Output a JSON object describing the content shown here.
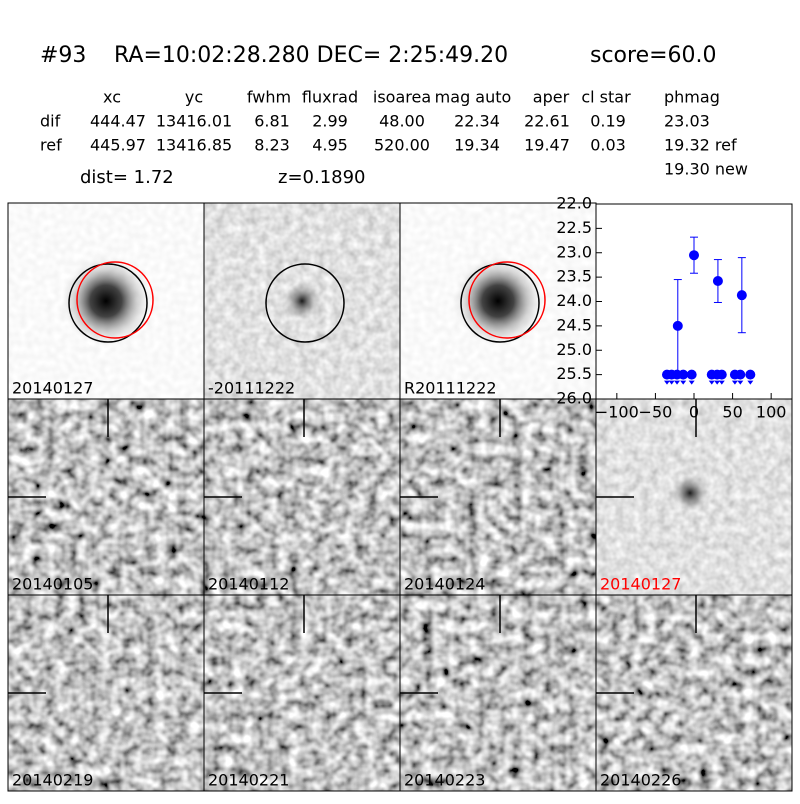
{
  "header": {
    "id": "#93",
    "coords": "RA=10:02:28.280 DEC= 2:25:49.20",
    "score": "score=60.0"
  },
  "table": {
    "columns": [
      "xc",
      "yc",
      "fwhm",
      "fluxrad",
      "isoarea",
      "mag auto",
      "aper",
      "cl star",
      "phmag"
    ],
    "rows": [
      [
        "dif",
        "444.47",
        "13416.01",
        "6.81",
        "2.99",
        "48.00",
        "22.34",
        "22.61",
        "0.19",
        "23.03"
      ],
      [
        "ref",
        "445.97",
        "13416.85",
        "8.23",
        "4.95",
        "520.00",
        "19.34",
        "19.47",
        "0.03",
        "19.32 ref"
      ]
    ],
    "extra": "19.30 new"
  },
  "dist": "dist=  1.72",
  "z": "z=0.1890",
  "panels": [
    "20140127",
    "-20111222",
    "R20111222",
    "20140105",
    "20140112",
    "20140124",
    "20140127",
    "20140219",
    "20140221",
    "20140223",
    "20140226"
  ],
  "chart_data": {
    "type": "scatter",
    "xlim": [
      -127,
      127
    ],
    "ylim": [
      26,
      22
    ],
    "xticks": [
      {
        "value": -100,
        "label": "−100"
      },
      {
        "value": -50,
        "label": "−50"
      },
      0,
      50,
      100
    ],
    "yticks": [
      {
        "value": 22,
        "label": "22.0"
      },
      {
        "value": 22.5,
        "label": "22.5"
      },
      {
        "value": 23,
        "label": "23.0"
      },
      {
        "value": 23.5,
        "label": "23.5"
      },
      {
        "value": 24,
        "label": "24.0"
      },
      {
        "value": 24.5,
        "label": "24.5"
      },
      {
        "value": 25,
        "label": "25.0"
      },
      {
        "value": 25.5,
        "label": "25.5"
      },
      {
        "value": 26,
        "label": "26.0"
      }
    ],
    "series": [
      {
        "color": "#0000ff",
        "x": [
          -21,
          0,
          31,
          62
        ],
        "values": [
          24.5,
          23.05,
          23.58,
          23.87
        ],
        "errors": [
          0.95,
          0.37,
          0.44,
          0.77
        ]
      },
      {
        "color": "#0000ff",
        "x": [
          -35,
          -29,
          -22,
          -14,
          -3,
          23,
          30,
          36,
          53,
          60,
          73
        ],
        "values": [
          25.5,
          25.5,
          25.5,
          25.5,
          25.5,
          25.5,
          25.5,
          25.5,
          25.5,
          25.5,
          25.5
        ]
      }
    ]
  }
}
